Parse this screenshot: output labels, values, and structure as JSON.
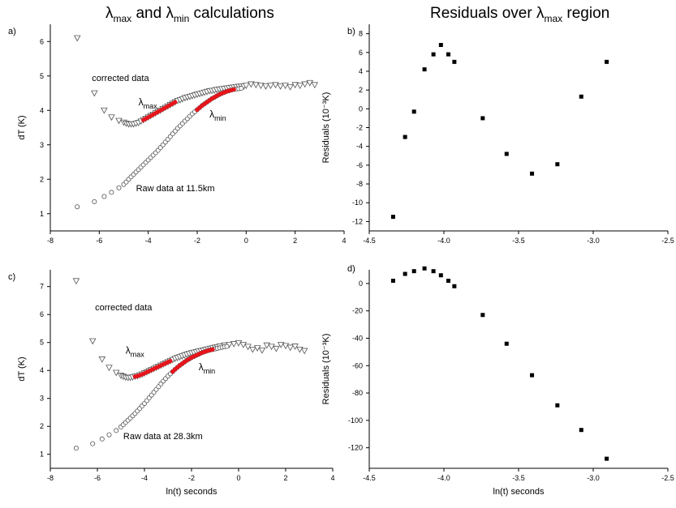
{
  "titles": {
    "left_a": "λ",
    "left_b": "max",
    "left_c": " and ",
    "left_d": "λ",
    "left_e": "min",
    "left_f": " calculations",
    "right_a": "Residuals over ",
    "right_b": "λ",
    "right_c": "max",
    "right_d": " region"
  },
  "colors": {
    "highlight": "#e8141b",
    "marker": "#000000",
    "axis": "#000000"
  },
  "chart_data": [
    {
      "panel": "a)",
      "type": "scatter",
      "xlabel": "",
      "ylabel": "dT (K)",
      "xlim": [
        -8,
        4
      ],
      "ylim": [
        0.5,
        6.5
      ],
      "xticks": [
        -8,
        -6,
        -4,
        -2,
        0,
        2,
        4
      ],
      "yticks": [
        1,
        2,
        3,
        4,
        5,
        6
      ],
      "annotations": [
        {
          "text": "corrected data",
          "x": -6.3,
          "y": 4.85
        },
        {
          "text": "λmax",
          "x": -4.4,
          "y": 4.15
        },
        {
          "text": "λmin",
          "x": -1.5,
          "y": 3.8
        },
        {
          "text": "Raw data at 11.5km",
          "x": -4.5,
          "y": 1.65
        }
      ],
      "series": [
        {
          "marker": "triangle-down",
          "x": [
            -6.9,
            -6.2,
            -5.8,
            -5.5,
            -5.2,
            -5.0,
            -4.9,
            -4.8,
            -4.7,
            -4.6,
            -4.5,
            -4.4,
            -4.3,
            -4.2,
            -4.1,
            -4.0,
            -3.9,
            -3.8,
            -3.7,
            -3.6,
            -3.5,
            -3.4,
            -3.3,
            -3.2,
            -3.1,
            -3.0,
            -2.9,
            -2.8,
            -2.7,
            -2.6,
            -2.5,
            -2.4,
            -2.3,
            -2.2,
            -2.1,
            -2.0,
            -1.9,
            -1.8,
            -1.7,
            -1.6,
            -1.5,
            -1.4,
            -1.3,
            -1.2,
            -1.1,
            -1.0,
            -0.9,
            -0.8,
            -0.7,
            -0.6,
            -0.5,
            -0.4,
            -0.3,
            -0.2,
            -0.1,
            0.0,
            0.2,
            0.4,
            0.6,
            0.8,
            1.0,
            1.2,
            1.4,
            1.6,
            1.8,
            2.0,
            2.2,
            2.4,
            2.6,
            2.8
          ],
          "y": [
            6.1,
            4.5,
            4.0,
            3.8,
            3.7,
            3.65,
            3.62,
            3.6,
            3.6,
            3.6,
            3.62,
            3.64,
            3.68,
            3.72,
            3.76,
            3.8,
            3.84,
            3.88,
            3.92,
            3.96,
            4.0,
            4.04,
            4.08,
            4.12,
            4.16,
            4.2,
            4.24,
            4.28,
            4.3,
            4.33,
            4.36,
            4.38,
            4.4,
            4.42,
            4.44,
            4.46,
            4.48,
            4.5,
            4.52,
            4.54,
            4.56,
            4.57,
            4.58,
            4.6,
            4.61,
            4.62,
            4.63,
            4.64,
            4.65,
            4.66,
            4.67,
            4.68,
            4.69,
            4.7,
            4.7,
            4.72,
            4.76,
            4.74,
            4.72,
            4.7,
            4.72,
            4.74,
            4.7,
            4.72,
            4.68,
            4.74,
            4.72,
            4.76,
            4.8,
            4.74
          ]
        },
        {
          "marker": "circle",
          "x": [
            -6.9,
            -6.2,
            -5.8,
            -5.5,
            -5.2,
            -5.0,
            -4.9,
            -4.8,
            -4.7,
            -4.6,
            -4.5,
            -4.4,
            -4.3,
            -4.2,
            -4.1,
            -4.0,
            -3.9,
            -3.8,
            -3.7,
            -3.6,
            -3.5,
            -3.4,
            -3.3,
            -3.2,
            -3.1,
            -3.0,
            -2.9,
            -2.8,
            -2.7,
            -2.6,
            -2.5,
            -2.4,
            -2.3,
            -2.2,
            -2.1,
            -2.0,
            -1.9,
            -1.8,
            -1.7,
            -1.6,
            -1.5,
            -1.4,
            -1.3,
            -1.2,
            -1.1,
            -1.0,
            -0.9,
            -0.8,
            -0.7,
            -0.6,
            -0.5,
            -0.4,
            -0.3,
            -0.2
          ],
          "y": [
            1.2,
            1.35,
            1.5,
            1.62,
            1.75,
            1.85,
            1.92,
            2.0,
            2.07,
            2.14,
            2.21,
            2.28,
            2.35,
            2.42,
            2.49,
            2.56,
            2.63,
            2.7,
            2.77,
            2.84,
            2.92,
            3.0,
            3.08,
            3.16,
            3.24,
            3.32,
            3.4,
            3.48,
            3.55,
            3.62,
            3.69,
            3.76,
            3.83,
            3.9,
            3.96,
            4.02,
            4.08,
            4.14,
            4.19,
            4.24,
            4.29,
            4.34,
            4.38,
            4.42,
            4.46,
            4.49,
            4.52,
            4.55,
            4.57,
            4.59,
            4.61,
            4.62,
            4.63,
            4.64
          ]
        },
        {
          "marker": "red-highlight",
          "x": [
            -4.2,
            -4.1,
            -4.0,
            -3.9,
            -3.8,
            -3.7,
            -3.6,
            -3.5,
            -3.4,
            -3.3,
            -3.2,
            -3.1,
            -3.0,
            -2.9
          ],
          "y": [
            3.72,
            3.76,
            3.8,
            3.84,
            3.88,
            3.92,
            3.96,
            4.0,
            4.04,
            4.08,
            4.12,
            4.16,
            4.2,
            4.24
          ]
        },
        {
          "marker": "red-highlight",
          "x": [
            -2.0,
            -1.9,
            -1.8,
            -1.7,
            -1.6,
            -1.5,
            -1.4,
            -1.3,
            -1.2,
            -1.1,
            -1.0,
            -0.9,
            -0.8,
            -0.7,
            -0.6,
            -0.5
          ],
          "y": [
            4.02,
            4.08,
            4.14,
            4.19,
            4.24,
            4.29,
            4.34,
            4.38,
            4.42,
            4.46,
            4.49,
            4.52,
            4.55,
            4.57,
            4.59,
            4.61
          ]
        }
      ]
    },
    {
      "panel": "b)",
      "type": "scatter",
      "xlabel": "",
      "ylabel": "Residuals (10⁻³K)",
      "xlim": [
        -4.5,
        -2.5
      ],
      "ylim": [
        -13,
        9
      ],
      "xticks": [
        -4.5,
        -4.0,
        -3.5,
        -3.0,
        -2.5
      ],
      "yticks": [
        -12,
        -10,
        -8,
        -6,
        -4,
        -2,
        0,
        2,
        4,
        6,
        8
      ],
      "series": [
        {
          "marker": "square",
          "x": [
            -4.34,
            -4.26,
            -4.2,
            -4.13,
            -4.07,
            -4.02,
            -3.97,
            -3.93,
            -3.74,
            -3.58,
            -3.41,
            -3.24,
            -3.08,
            -2.91
          ],
          "y": [
            -11.5,
            -3.0,
            -0.3,
            4.2,
            5.8,
            6.8,
            5.8,
            5.0,
            -1.0,
            -4.8,
            -6.9,
            -5.9,
            1.3,
            5.0
          ]
        }
      ]
    },
    {
      "panel": "c)",
      "type": "scatter",
      "xlabel": "ln(t) seconds",
      "ylabel": "dT (K)",
      "xlim": [
        -8,
        4
      ],
      "ylim": [
        0.5,
        7.6
      ],
      "xticks": [
        -8,
        -6,
        -4,
        -2,
        0,
        2,
        4
      ],
      "yticks": [
        1,
        2,
        3,
        4,
        5,
        6,
        7
      ],
      "annotations": [
        {
          "text": "corrected data",
          "x": -6.1,
          "y": 6.15
        },
        {
          "text": "λmax",
          "x": -4.8,
          "y": 4.6
        },
        {
          "text": "λmin",
          "x": -1.7,
          "y": 4.0
        },
        {
          "text": "Raw data at 28.3km",
          "x": -4.9,
          "y": 1.55
        }
      ],
      "series": [
        {
          "marker": "triangle-down",
          "x": [
            -6.9,
            -6.2,
            -5.8,
            -5.5,
            -5.2,
            -5.0,
            -4.9,
            -4.8,
            -4.7,
            -4.6,
            -4.5,
            -4.4,
            -4.3,
            -4.2,
            -4.1,
            -4.0,
            -3.9,
            -3.8,
            -3.7,
            -3.6,
            -3.5,
            -3.4,
            -3.3,
            -3.2,
            -3.1,
            -3.0,
            -2.9,
            -2.8,
            -2.7,
            -2.6,
            -2.5,
            -2.4,
            -2.3,
            -2.2,
            -2.1,
            -2.0,
            -1.9,
            -1.8,
            -1.7,
            -1.6,
            -1.5,
            -1.4,
            -1.3,
            -1.2,
            -1.1,
            -1.0,
            -0.9,
            -0.8,
            -0.6,
            -0.4,
            -0.2,
            0.0,
            0.2,
            0.4,
            0.6,
            0.8,
            1.0,
            1.2,
            1.4,
            1.6,
            1.8,
            2.0,
            2.2,
            2.4,
            2.6,
            2.8
          ],
          "y": [
            7.2,
            5.05,
            4.4,
            4.1,
            3.92,
            3.82,
            3.78,
            3.75,
            3.74,
            3.74,
            3.76,
            3.78,
            3.8,
            3.83,
            3.86,
            3.9,
            3.94,
            3.98,
            4.02,
            4.06,
            4.1,
            4.14,
            4.18,
            4.22,
            4.26,
            4.3,
            4.34,
            4.38,
            4.42,
            4.45,
            4.48,
            4.51,
            4.54,
            4.57,
            4.6,
            4.62,
            4.64,
            4.66,
            4.68,
            4.7,
            4.72,
            4.74,
            4.76,
            4.78,
            4.8,
            4.82,
            4.84,
            4.86,
            4.9,
            4.92,
            4.95,
            4.98,
            4.92,
            4.85,
            4.75,
            4.8,
            4.72,
            4.9,
            4.85,
            4.78,
            4.92,
            4.88,
            4.82,
            4.86,
            4.75,
            4.7
          ]
        },
        {
          "marker": "circle",
          "x": [
            -6.9,
            -6.2,
            -5.8,
            -5.5,
            -5.2,
            -5.0,
            -4.9,
            -4.8,
            -4.7,
            -4.6,
            -4.5,
            -4.4,
            -4.3,
            -4.2,
            -4.1,
            -4.0,
            -3.9,
            -3.8,
            -3.7,
            -3.6,
            -3.5,
            -3.4,
            -3.3,
            -3.2,
            -3.1,
            -3.0,
            -2.9,
            -2.8,
            -2.7,
            -2.6,
            -2.5,
            -2.4,
            -2.3,
            -2.2,
            -2.1,
            -2.0,
            -1.9,
            -1.8,
            -1.7,
            -1.6,
            -1.5,
            -1.4,
            -1.3,
            -1.2,
            -1.1,
            -1.0,
            -0.9,
            -0.8,
            -0.7,
            -0.6,
            -0.5
          ],
          "y": [
            1.22,
            1.38,
            1.55,
            1.7,
            1.85,
            1.98,
            2.06,
            2.14,
            2.22,
            2.3,
            2.38,
            2.46,
            2.55,
            2.64,
            2.73,
            2.82,
            2.92,
            3.02,
            3.12,
            3.22,
            3.32,
            3.42,
            3.52,
            3.62,
            3.71,
            3.8,
            3.88,
            3.96,
            4.04,
            4.11,
            4.18,
            4.24,
            4.3,
            4.36,
            4.41,
            4.46,
            4.5,
            4.54,
            4.58,
            4.62,
            4.65,
            4.68,
            4.71,
            4.73,
            4.75,
            4.77,
            4.79,
            4.81,
            4.83,
            4.85,
            4.86
          ]
        },
        {
          "marker": "red-highlight",
          "x": [
            -4.4,
            -4.3,
            -4.2,
            -4.1,
            -4.0,
            -3.9,
            -3.8,
            -3.7,
            -3.6,
            -3.5,
            -3.4,
            -3.3,
            -3.2,
            -3.1,
            -3.0,
            -2.9
          ],
          "y": [
            3.78,
            3.8,
            3.83,
            3.86,
            3.9,
            3.94,
            3.98,
            4.02,
            4.06,
            4.1,
            4.14,
            4.18,
            4.22,
            4.26,
            4.3,
            4.34
          ]
        },
        {
          "marker": "red-highlight",
          "x": [
            -2.8,
            -2.7,
            -2.6,
            -2.5,
            -2.4,
            -2.3,
            -2.2,
            -2.1,
            -2.0,
            -1.9,
            -1.8,
            -1.7,
            -1.6,
            -1.5,
            -1.4,
            -1.3,
            -1.2,
            -1.1
          ],
          "y": [
            3.96,
            4.04,
            4.11,
            4.18,
            4.24,
            4.3,
            4.36,
            4.41,
            4.46,
            4.5,
            4.54,
            4.58,
            4.62,
            4.65,
            4.68,
            4.71,
            4.73,
            4.75
          ]
        }
      ]
    },
    {
      "panel": "d)",
      "type": "scatter",
      "xlabel": "ln(t) seconds",
      "ylabel": "Residuals (10⁻³K)",
      "xlim": [
        -4.5,
        -2.5
      ],
      "ylim": [
        -135,
        10
      ],
      "xticks": [
        -4.5,
        -4.0,
        -3.5,
        -3.0,
        -2.5
      ],
      "yticks": [
        -120,
        -100,
        -80,
        -60,
        -40,
        -20,
        0
      ],
      "series": [
        {
          "marker": "square",
          "x": [
            -4.34,
            -4.26,
            -4.2,
            -4.13,
            -4.07,
            -4.02,
            -3.97,
            -3.93,
            -3.74,
            -3.58,
            -3.41,
            -3.24,
            -3.08,
            -2.91
          ],
          "y": [
            2,
            7,
            9,
            11,
            9,
            6,
            2,
            -2,
            -23,
            -44,
            -67,
            -89,
            -107,
            -128
          ]
        }
      ]
    }
  ]
}
